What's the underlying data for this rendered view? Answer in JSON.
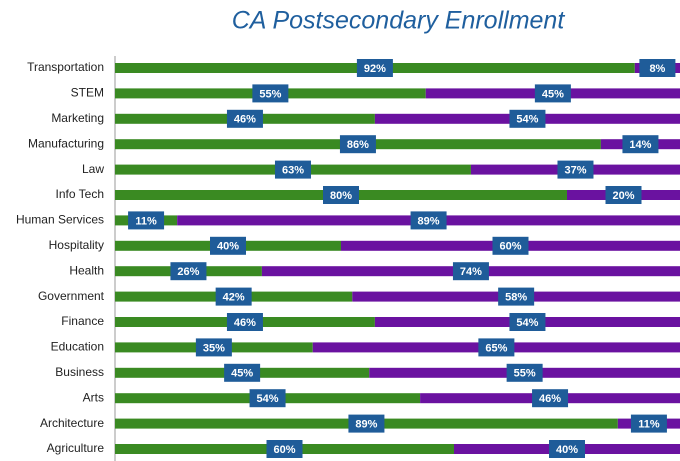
{
  "chart_data": {
    "type": "stacked-bar-horizontal",
    "title": "CA Postsecondary Enrollment",
    "categories": [
      "Transportation",
      "STEM",
      "Marketing",
      "Manufacturing",
      "Law",
      "Info Tech",
      "Human Services",
      "Hospitality",
      "Health",
      "Government",
      "Finance",
      "Education",
      "Business",
      "Arts",
      "Architecture",
      "Agriculture"
    ],
    "xlim": [
      0,
      100
    ],
    "series": [
      {
        "color": "#3a8a22",
        "values": [
          92,
          55,
          46,
          86,
          63,
          80,
          11,
          40,
          26,
          42,
          46,
          35,
          45,
          54,
          89,
          60
        ],
        "value_labels": [
          "92%",
          "55%",
          "46%",
          "86%",
          "63%",
          "80%",
          "11%",
          "40%",
          "26%",
          "42%",
          "46%",
          "35%",
          "45%",
          "54%",
          "89%",
          "60%"
        ]
      },
      {
        "color": "#6a12a0",
        "values": [
          8,
          45,
          54,
          14,
          37,
          20,
          89,
          60,
          74,
          58,
          54,
          65,
          55,
          46,
          11,
          40
        ],
        "value_labels": [
          "8%",
          "45%",
          "54%",
          "14%",
          "37%",
          "20%",
          "89%",
          "60%",
          "74%",
          "58%",
          "54%",
          "65%",
          "55%",
          "46%",
          "11%",
          "40%"
        ]
      }
    ],
    "label_box_color": "#1f5c99"
  }
}
